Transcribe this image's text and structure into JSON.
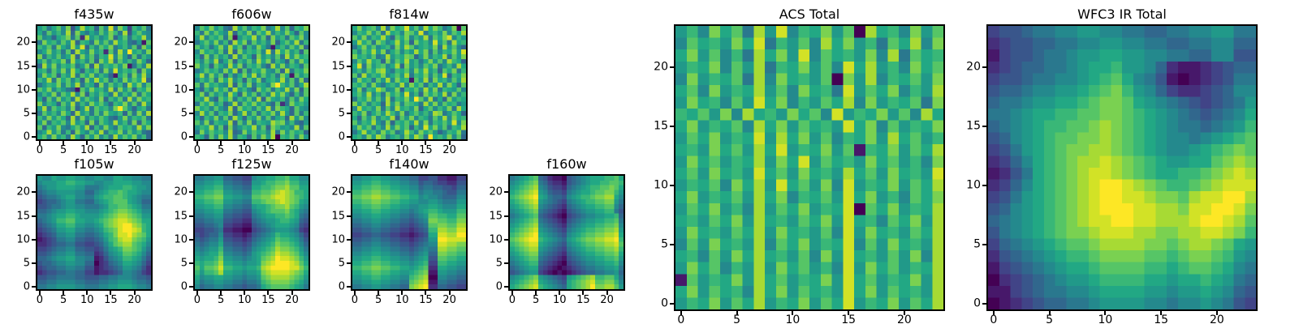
{
  "figure": {
    "background": "#ffffff",
    "axis_color": "#000000"
  },
  "colormap": {
    "name": "viridis",
    "stops": [
      "#440154",
      "#482475",
      "#414487",
      "#355f8d",
      "#2a788e",
      "#21918c",
      "#22a884",
      "#44bf70",
      "#7ad151",
      "#bddf26",
      "#fde725"
    ]
  },
  "cell_encoding": "hex digit 0-f per cell, rows listed top to bottom",
  "chart_data": [
    {
      "type": "heatmap",
      "title": "f435w",
      "grid_size": 24,
      "x_ticks": [
        0,
        5,
        10,
        15,
        20
      ],
      "y_ticks": [
        0,
        5,
        10,
        15,
        20
      ],
      "rows": [
        "8a69b7c48d9a5b7e6c93a8b6",
        "96b8a7d5c8697b8ca6d49b87",
        "b7859ac6b2d8a79c58b6a9d7",
        "6c9a7b8d5a96c8b7d9a6581b",
        "a8b6c97d8e5a7b9c68a7b5c9",
        "79c8a6b5d97c8a2b6d8f9a7c",
        "c6a8b79d5c8b6a9e7c85b6a8",
        "8b7a9c6d8a7b5c9d6b8a7c95",
        "5d8c7a9b68c5d7a9b8c16a7d",
        "9a6b8c7d95a8b6c7e8a9b5c8",
        "7c9b5a8d6b9c7a8519b6c8d7",
        "a8d6c9b7a5c8d9b6a7c8b9e5",
        "68a9c7b8d6a95c7b8a6d9c7b",
        "b9c7a8651b8c9a7d6c8b5a9c",
        "7a8c6b9d7c5a8b96d7a8c6b9",
        "95b7c8a6d8b97c5a8b6d7c9a",
        "c7a95b8d6a7c9b85a9c7b6d8",
        "8d6b9a7c58d6b9a7cfb859a6",
        "6b8a7c95d8a6b7c98a5b6c7d",
        "a7c8b95d6c7a8b9658c7a9b6",
        "8c6a9b7d8a5c6b97d8a6c5b9",
        "b5a8c769b8d5a7c86b9a7d8c",
        "79d8b6a5c97b8d6a9c7b8a65",
        "9b7c8a6d95b8c7a6d8b9c7a5"
      ]
    },
    {
      "type": "heatmap",
      "title": "f606w",
      "grid_size": 24,
      "x_ticks": [
        0,
        5,
        10,
        15,
        20
      ],
      "y_ticks": [
        0,
        5,
        10,
        15,
        20
      ],
      "rows": [
        "7b9c8a65d8b7a9c68d7b5a9c",
        "a6c8b97d5a8c6b9d7a8c95b7",
        "8d7a9b6c18a9d7b5c8a6b9c7",
        "69b8c7a5d9c6b8a7c59b8d6a",
        "b8a69c7d8b5a7c9618a7b8c5",
        "7c9a8b6d5c8a9b7e6d9c8a5b",
        "95c7b8a6d7b95c8a7b6d8c9a",
        "a7b8d69c5a8b7d9c6a85b7c9",
        "c8a5b97d8c6a9b75d8c7a96b",
        "68b9a7c8d5b6a9c87b5d6a9c",
        "9d7c8b5a69c8d7b8a6c91b8a",
        "7a8b6c9d7a5b8c69a8d7b6c5",
        "b6c9a87d5b8c6a97cfa8b69d",
        "85a7c9b6d8a75c9b6a8d7c5b",
        "9c6b8a7d95c8b6a7d9c85a6b",
        "a8d75b9c6a8b7d5c98a6b7c9",
        "6b9c8a57d6b9c8a75b26c9a8",
        "c9a7b86d5c9a7b8d6ca95b87",
        "7d8b6a9c58d7b6a9c7d85b6a",
        "95a8c7b6d95a8c7b69a5d8c7",
        "b7c6a98d5b7c6a98dbc7a658",
        "8a9d7b5c68a9d7b5ca897d6b",
        "6c8b9a7d56c8b9a7d6c8b9a5",
        "a95b7c8d6a95b7c8d0a9b7c8"
      ]
    },
    {
      "type": "heatmap",
      "title": "f814w",
      "grid_size": 24,
      "x_ticks": [
        0,
        5,
        10,
        15,
        20
      ],
      "y_ticks": [
        0,
        5,
        10,
        15,
        20
      ],
      "rows": [
        "9c8ab7d6c9ae8b7d9ca68c0b",
        "7a9c8b6d9a7cb8e69a8c7b9d",
        "b8c7a9d85b9c7a8d6b9ce7a8",
        "8d9b6ca79d8b5c9a7e8b6d9a",
        "69c8b79a6c8db79a8c6d8b75",
        "a7b9d8c69b7a8d9c6b7a9c8e",
        "c9a8b67d8a9cb58c7a9d6b8c",
        "7b8d9a5c7b9d8a69c8b7da95",
        "9e6c8ab79d5c8a7b9c68a7d9",
        "8a7b9cd86a9b7c9d8a5b9c6a",
        "b6d8a9c79b8d6a9c7b8e5a9c",
        "7c9a6b8d7c9a1b8d6c9a7b8d",
        "a9b7c869a8d7c9b6a8d7c95b",
        "8c6a9db78c5a9b7d8c6a98b7",
        "9b8d7a6c9b8e7a5c9b8d6c7a",
        "6a9c8b7d6a9c8fb7d695c8a9",
        "c8b7a95d8c7ba96d8c7b9a68",
        "7d9a8c6b7d9a8c59b7a8c6d9",
        "a8c69b8da7c69b8a7dc68b95",
        "95b8c7a9d5b8c7a96b8d7c9a",
        "b7a9d86c5a9b8d7c6a9b8e7c",
        "8c9b6a7d8c9b5a7e9c8b6a9d",
        "69d8a7c9b68da7c9b857a9c6",
        "9a7c8db69a7c8db6f9a8c7b5"
      ]
    },
    {
      "type": "heatmap",
      "title": "f105w",
      "grid_size": 24,
      "x_ticks": [
        0,
        5,
        10,
        15,
        20
      ],
      "y_ticks": [
        0,
        5,
        10,
        15,
        20
      ],
      "rows": [
        "877988998877887799887766",
        "788899aa9988778899998877",
        "678899998866678999aa9887",
        "567788887755789aaba99877",
        "45667899776689aabba98766",
        "345567886655789abbb98755",
        "445667887766678aabba9866",
        "556788998877789abccba977",
        "667899aa988889abcddcba88",
        "5678aabb99889abcdeedcb99",
        "456799aa887789bcdeffdca9",
        "34568899776678abceffeda9",
        "234577886655679aceefdcb9",
        "123466775544568abdeecba8",
        "2234556644334579bcddba97",
        "33456677554434689accba86",
        "445677886655235789bba975",
        "556788997766124678aa9864",
        "455677887755023567998753",
        "345566776644123456887642",
        "234455665533122345776532",
        "445566665544455667776554",
        "556677776655566778887665",
        "667788887766677889998776"
      ]
    },
    {
      "type": "heatmap",
      "title": "f125w",
      "grid_size": 24,
      "x_ticks": [
        0,
        5,
        10,
        15,
        20
      ],
      "y_ticks": [
        0,
        5,
        10,
        15,
        20
      ],
      "rows": [
        "66778855443378899aab9977",
        "778899665544889aabbcaa88",
        "8899aa77665599aabccdbb99",
        "99aabb887766aabbcdedcaa9",
        "aabbcc998877bbccdeedcba9",
        "99aabb887766aabccdedcb98",
        "8899aa776655899abccdba87",
        "778899665544789abbbca976",
        "66778855443367899aaba965",
        "556677443322567889aa9854",
        "445567332211456789998743",
        "334456221100345678887632",
        "43455733221245678a998753",
        "54566844332356789baa9864",
        "6567795544346789acbba975",
        "76788a665545789abdccba86",
        "87899b77665689abceddcb97",
        "9899ac88776789bcdfeedca8",
        "a9aabd99887889cdefffedb9",
        "b9bbceaa99899adeffffeeca",
        "a8aabd99887889cdeeeedcb9",
        "97889988776778bcddddcba8",
        "86778877665667abccccba97",
        "756677665545569abbbba986"
      ]
    },
    {
      "type": "heatmap",
      "title": "f140w",
      "grid_size": 24,
      "x_ticks": [
        0,
        5,
        10,
        15,
        20
      ],
      "y_ticks": [
        0,
        5,
        10,
        15,
        20
      ],
      "rows": [
        "778899887766553344221133",
        "8899aa998877664554332244",
        "99aabbaa9988775665544355",
        "aabbccbbaa99886776654466",
        "bbccddccbbaa997877655577",
        "aabbccbbaa99887788766688",
        "99aabbaa9988778899877799",
        "8899aa9988776789aa9888aa",
        "7788998877665678bbaa99bb",
        "6677887766554567ccbbaacc",
        "5566776655443456bbccbbdd",
        "4455665544332345aaddccee",
        "334455443322123499eeddff",
        "445566554433234588ffeeee",
        "556677665544345677eeddcc",
        "667788776655456766ddccbb",
        "778899887766567855ccbbaa",
        "8899aa998877678944bbaa99",
        "99aabbaa9988789a33aa9988",
        "aabbccbbaa9989ab22998877",
        "99aabbaa99889abc11887766",
        "8899aa998877abcd00776655",
        "778899887766bcde11665544",
        "667788776655cdef22554433"
      ]
    },
    {
      "type": "heatmap",
      "title": "f160w",
      "grid_size": 24,
      "x_ticks": [
        0,
        5,
        10,
        15,
        20
      ],
      "y_ticks": [
        0,
        5,
        10,
        15,
        20
      ],
      "rows": [
        "6789ab54211045678999aab9",
        "789abc6532214567899aabba",
        "89abcd76433256789aabbcb9",
        "9abcde87544367899abbcca8",
        "abcdef986554789aabccdd97",
        "9abcde8765436789aabbcc86",
        "89abcd765432567899aabb75",
        "789abc65432145678899aa64",
        "6789ab5432103456778899a5",
        "789abc65432145678899aab6",
        "89abcd765432567899aabbc7",
        "9abcde8765436789aabbccd8",
        "abcdef987654789abbccdde9",
        "bcdeffa9876589abccddeefa",
        "abcdee987654789abbccddeb",
        "9abcdd8765436789aabbccda",
        "89abcc765432567899aabbc9",
        "789abb65432145678899aab8",
        "6789aa5432103456778899a7",
        "567899432101234566778896",
        "456788321010123455667785",
        "789abc87654389abcdaabb96",
        "89abcd9876549abcdebbcca7",
        "9abcdea987659abcdfccddb8"
      ]
    },
    {
      "type": "heatmap",
      "title": "ACS Total",
      "grid_size": 24,
      "x_ticks": [
        0,
        5,
        10,
        15,
        20
      ],
      "y_ticks": [
        0,
        5,
        10,
        15,
        20
      ],
      "rows": [
        "8a7c9b6d8e7a9c8b0d9a7c8b",
        "7b9a8c9e6a8b7d9c8a6b9d7c",
        "9c8b7a6d9c8e7b9a8c7d6b9a",
        "8a9c7b8d6a9c8b7e9d8a7c9b",
        "7c8a9b6d7c9a8b0c8d7a9b8c",
        "9b7c8a9d8b7c9a6e8b9c7a8d",
        "8c9a7b8e9c7a8b9d7c8a9b6c",
        "a9b8c7d9a8c9b7e8a9c8b7d9",
        "9c8a9b7d9c8b9a8e9c7b8a9c",
        "8b9c8a9e8d9c8b7a9c8d9b8a",
        "9a8c9b8d9e8a9c8b1a9c8b9d",
        "8c9b8a9d8c9e8b9a8c9b8a7c",
        "9b8c9a8e9b8c9a8d9b8c9a8e",
        "8a9b7c9d8e9b8c7e8a9c8b9d",
        "9c8a9b8d9c7a9b8e9c8a7b9c",
        "8b9c8a7d8b9c8a9e0b9c8a9d",
        "9a8b9c8d9a8b9c8e9a7b9c8d",
        "8c9a8b9d8c9a8b7e8c9a8b9d",
        "7b8c9a8d7b9c8a9e7b8c9a8d",
        "9a7b8c9d9a8b7c8e9a8b8c7d",
        "8c9b7a8d8c9b8a7e8c9b8a9d",
        "1b8a9c8d9b8a9c8e9b8a9c8d",
        "9c8b9a7d9c8b9a8e9c8b9a8d",
        "8a9c8b9d8a9c8b9e8a9c8b9d"
      ]
    },
    {
      "type": "heatmap",
      "title": "WFC3 IR Total",
      "grid_size": 24,
      "x_ticks": [
        0,
        5,
        10,
        15,
        20
      ],
      "y_ticks": [
        0,
        5,
        10,
        15,
        20
      ],
      "rows": [
        "344566778877665566778866",
        "234455667788776655667755",
        "134456678899887766557744",
        "23455667899a887521123455",
        "3445667789ab976410123466",
        "455677889abca87532234577",
        "56678899abccb98765434568",
        "667899aabbccba9876545679",
        "56789aabbcdcba987665678a",
        "45789abbccdcba98776789ab",
        "34689abccddcba987789abcb",
        "23579abcddedcba98899bcdc",
        "12469abcdeedcba99aabcded",
        "23579abcdeffedcbaabcdeee",
        "34689abcdeffeedccbdeeffd",
        "45789abcdefffeeddceeffec",
        "56789abcdeeffeedddeffedb",
        "46789abccdeeeddccddeedca",
        "356789abbcddddccbcddcb98",
        "2456789aabccccbbabccba87",
        "134567899abbbbaa9abba976",
        "0234567889aaaa99899a9865",
        "113456677899998878898754",
        "012345566788887767787643"
      ]
    }
  ]
}
